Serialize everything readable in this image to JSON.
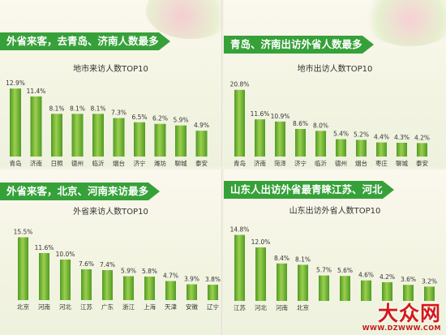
{
  "colors": {
    "banner": "#36a139",
    "bar_light": "#9ccf4e",
    "bar_dark": "#4f9b24"
  },
  "panels": [
    {
      "banner": "外省来客，去青岛、济南人数最多",
      "chart_title": "地市来访人数TOP10"
    },
    {
      "banner": "青岛、济南出访外省人数最多",
      "chart_title": "地市出访人数TOP10"
    },
    {
      "banner": "外省来客，北京、河南来访最多",
      "chart_title": "外省来访人数TOP10"
    },
    {
      "banner": "山东人出访外省最青睐江苏、河北",
      "chart_title": "山东出访外省人数TOP10"
    }
  ],
  "watermark": {
    "logo": "大众网",
    "url": "WWW.DZWWW.COM"
  },
  "chart_data": [
    {
      "type": "bar",
      "title": "地市来访人数TOP10",
      "categories": [
        "青岛",
        "济南",
        "日照",
        "德州",
        "临沂",
        "烟台",
        "济宁",
        "潍坊",
        "聊城",
        "泰安"
      ],
      "values": [
        12.9,
        11.4,
        8.1,
        8.1,
        8.1,
        7.3,
        6.5,
        6.2,
        5.9,
        4.9
      ],
      "value_labels": [
        "12.9%",
        "11.4%",
        "8.1%",
        "8.1%",
        "8.1%",
        "7.3%",
        "6.5%",
        "6.2%",
        "5.9%",
        "4.9%"
      ],
      "ylim": [
        0,
        14
      ],
      "grid": false
    },
    {
      "type": "bar",
      "title": "地市出访人数TOP10",
      "categories": [
        "青岛",
        "济南",
        "菏泽",
        "济宁",
        "临沂",
        "德州",
        "烟台",
        "枣庄",
        "聊城",
        "泰安"
      ],
      "values": [
        20.8,
        11.6,
        10.9,
        8.6,
        8.0,
        5.4,
        5.2,
        4.4,
        4.3,
        4.2
      ],
      "value_labels": [
        "20.8%",
        "11.6%",
        "10.9%",
        "8.6%",
        "8.0%",
        "5.4%",
        "5.2%",
        "4.4%",
        "4.3%",
        "4.2%"
      ],
      "ylim": [
        0,
        22
      ],
      "grid": false
    },
    {
      "type": "bar",
      "title": "外省来访人数TOP10",
      "categories": [
        "北京",
        "河南",
        "河北",
        "江苏",
        "广东",
        "浙江",
        "上海",
        "天津",
        "安徽",
        "辽宁"
      ],
      "values": [
        15.5,
        11.6,
        10.0,
        7.6,
        7.4,
        5.9,
        5.8,
        4.7,
        3.9,
        3.8
      ],
      "value_labels": [
        "15.5%",
        "11.6%",
        "10.0%",
        "7.6%",
        "7.4%",
        "5.9%",
        "5.8%",
        "4.7%",
        "3.9%",
        "3.8%"
      ],
      "ylim": [
        0,
        17
      ],
      "grid": false
    },
    {
      "type": "bar",
      "title": "山东出访外省人数TOP10",
      "categories": [
        "江苏",
        "河北",
        "河南",
        "北京",
        "",
        "",
        "",
        "",
        "",
        ""
      ],
      "values": [
        14.8,
        12.0,
        8.4,
        8.1,
        5.7,
        5.6,
        4.6,
        4.2,
        3.6,
        3.2
      ],
      "value_labels": [
        "14.8%",
        "12.0%",
        "8.4%",
        "8.1%",
        "5.7%",
        "5.6%",
        "4.6%",
        "4.2%",
        "3.6%",
        "3.2%"
      ],
      "ylim": [
        0,
        16
      ],
      "grid": false
    }
  ]
}
